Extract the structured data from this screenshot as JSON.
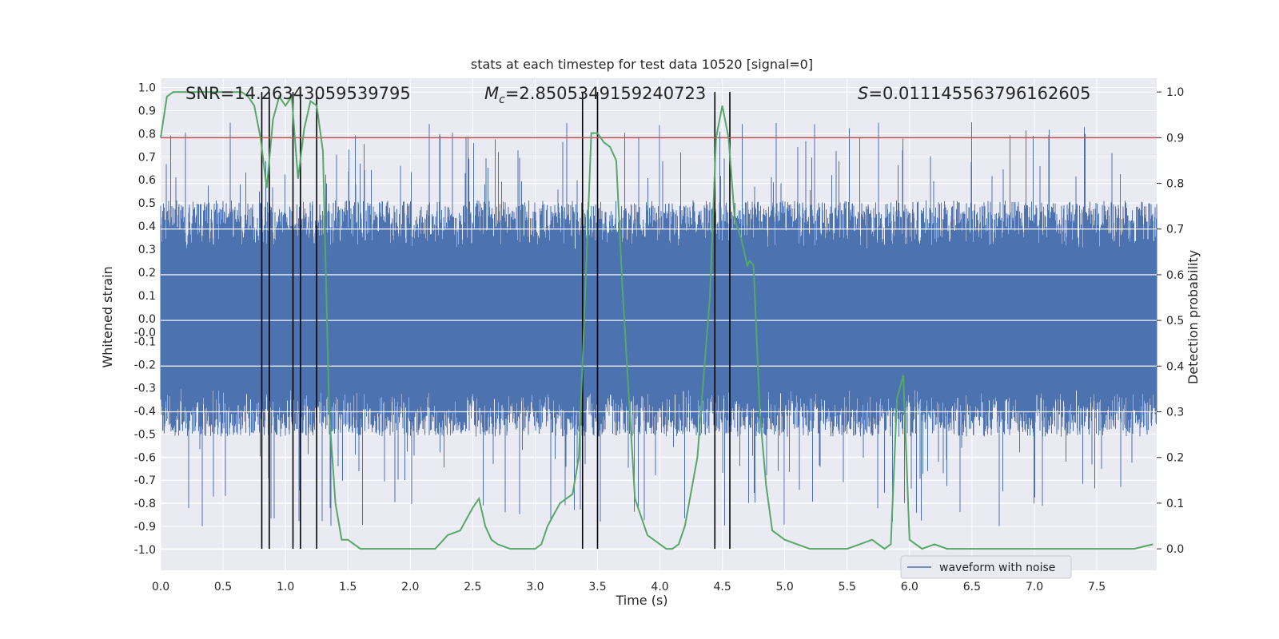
{
  "chart_data": {
    "type": "line",
    "title": "stats at each timestep for test data 10520 [signal=0]",
    "xlabel": "Time (s)",
    "ylabel": "Whitened strain",
    "y2label": "Detection probability",
    "xlim": [
      0.0,
      7.98
    ],
    "ylim": [
      -1.09,
      1.04
    ],
    "y2lim": [
      -0.047,
      1.03
    ],
    "x_ticks": [
      "0.0",
      "0.5",
      "1.0",
      "1.5",
      "2.0",
      "2.5",
      "3.0",
      "3.5",
      "4.0",
      "4.5",
      "5.0",
      "5.5",
      "6.0",
      "6.5",
      "7.0",
      "7.5"
    ],
    "y_ticks": [
      "1.0",
      "0.9",
      "0.8",
      "0.7",
      "0.6",
      "0.5",
      "0.4",
      "0.3",
      "0.2",
      "0.1",
      "0.0",
      "-0.0",
      "-0.1",
      "-0.2",
      "-0.3",
      "-0.4",
      "-0.5",
      "-0.6",
      "-0.7",
      "-0.8",
      "-0.9",
      "-1.0"
    ],
    "y2_ticks": [
      "1.0",
      "0.9",
      "0.8",
      "0.7",
      "0.6",
      "0.5",
      "0.4",
      "0.3",
      "0.2",
      "0.1",
      "0.0"
    ],
    "annotations": {
      "snr": "SNR=14.26343059539795",
      "mc_symbol": "M",
      "mc_sub": "c",
      "mc_value": "=2.8505349159240723",
      "s_symbol": "S",
      "s_value": "=0.011145563796162605"
    },
    "legend": {
      "label": "waveform with noise",
      "placement": "lower-right"
    },
    "threshold": {
      "value": 0.9,
      "color": "#c44e52"
    },
    "colors": {
      "waveform": "#4c72b0",
      "probability": "#55a868",
      "markers": "#000000",
      "background": "#eaeaf2",
      "grid": "#ffffff"
    },
    "series": [
      {
        "name": "waveform with noise",
        "description_envelope": {
          "typical_abs": 0.45,
          "spikes_max": 0.94,
          "spikes_min": -1.0
        }
      },
      {
        "x": [
          0.0,
          0.05,
          0.1,
          0.2,
          0.3,
          0.4,
          0.5,
          0.6,
          0.65,
          0.7,
          0.75,
          0.8,
          0.85,
          0.9,
          0.95,
          1.0,
          1.05,
          1.1,
          1.15,
          1.2,
          1.25,
          1.3,
          1.35,
          1.4,
          1.45,
          1.5,
          1.6,
          1.7,
          1.8,
          1.9,
          2.0,
          2.1,
          2.2,
          2.3,
          2.4,
          2.5,
          2.55,
          2.6,
          2.65,
          2.7,
          2.8,
          2.9,
          3.0,
          3.05,
          3.1,
          3.2,
          3.3,
          3.35,
          3.4,
          3.45,
          3.5,
          3.55,
          3.6,
          3.65,
          3.7,
          3.8,
          3.9,
          4.0,
          4.05,
          4.1,
          4.15,
          4.2,
          4.3,
          4.4,
          4.45,
          4.5,
          4.55,
          4.6,
          4.65,
          4.7,
          4.72,
          4.75,
          4.8,
          4.85,
          4.9,
          5.0,
          5.1,
          5.2,
          5.4,
          5.5,
          5.6,
          5.7,
          5.75,
          5.8,
          5.85,
          5.9,
          5.95,
          6.0,
          6.1,
          6.2,
          6.3,
          6.5,
          6.7,
          6.9,
          7.0,
          7.2,
          7.4,
          7.6,
          7.8,
          7.95
        ],
        "y": [
          0.9,
          0.99,
          1.0,
          1.0,
          1.0,
          1.0,
          1.0,
          1.0,
          1.0,
          0.99,
          0.97,
          0.9,
          0.79,
          0.94,
          0.99,
          0.97,
          0.99,
          0.81,
          0.92,
          0.98,
          0.97,
          0.87,
          0.3,
          0.1,
          0.02,
          0.02,
          0.0,
          0.0,
          0.0,
          0.0,
          0.0,
          0.0,
          0.0,
          0.03,
          0.04,
          0.09,
          0.11,
          0.05,
          0.02,
          0.01,
          0.0,
          0.0,
          0.0,
          0.01,
          0.05,
          0.1,
          0.12,
          0.2,
          0.55,
          0.91,
          0.91,
          0.89,
          0.88,
          0.85,
          0.57,
          0.11,
          0.03,
          0.01,
          0.0,
          0.0,
          0.01,
          0.05,
          0.2,
          0.55,
          0.9,
          0.97,
          0.9,
          0.72,
          0.68,
          0.62,
          0.63,
          0.62,
          0.3,
          0.14,
          0.04,
          0.02,
          0.01,
          0.0,
          0.0,
          0.0,
          0.01,
          0.02,
          0.01,
          0.0,
          0.01,
          0.33,
          0.38,
          0.02,
          0.0,
          0.01,
          0.0,
          0.0,
          0.0,
          0.0,
          0.0,
          0.0,
          0.0,
          0.0,
          0.0,
          0.01
        ]
      }
    ],
    "markers_x": [
      0.81,
      0.87,
      1.06,
      1.12,
      1.25,
      3.38,
      3.5,
      4.44,
      4.56
    ]
  }
}
